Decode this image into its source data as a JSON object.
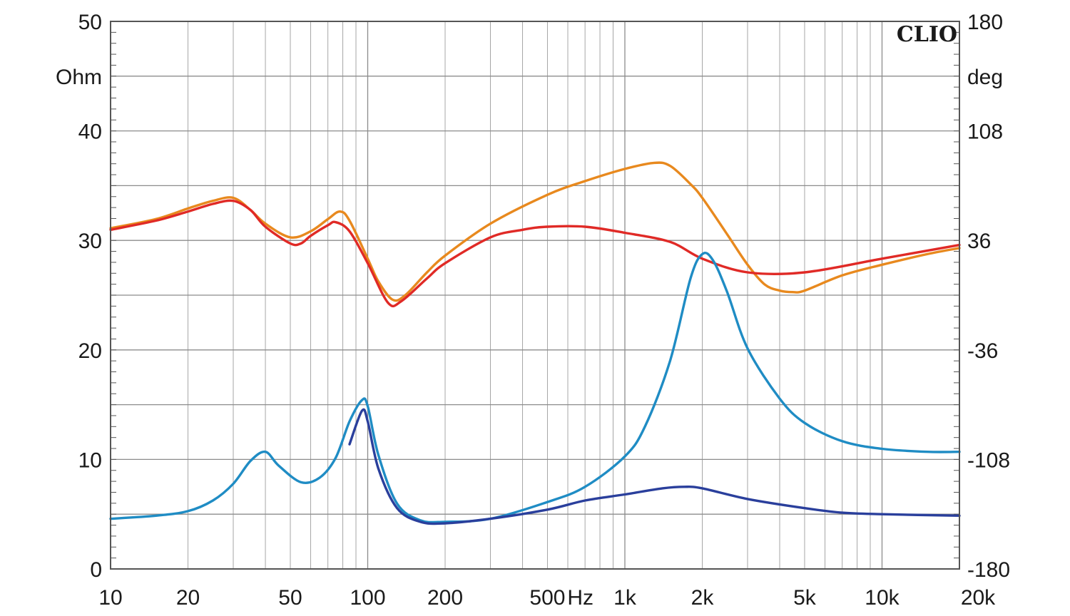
{
  "chart_data": {
    "type": "line",
    "brand": "CLIO",
    "x_scale": "log",
    "xlim": [
      10,
      20000
    ],
    "ylim": [
      0,
      50
    ],
    "y2lim": [
      -180,
      180
    ],
    "y_unit": "Ohm",
    "y2_unit": "deg",
    "x_unit": "Hz",
    "x_ticks": [
      {
        "value": 10,
        "label": "10"
      },
      {
        "value": 20,
        "label": "20"
      },
      {
        "value": 50,
        "label": "50"
      },
      {
        "value": 100,
        "label": "100"
      },
      {
        "value": 200,
        "label": "200"
      },
      {
        "value": 500,
        "label": "500"
      },
      {
        "value": 1000,
        "label": "1k"
      },
      {
        "value": 2000,
        "label": "2k"
      },
      {
        "value": 5000,
        "label": "5k"
      },
      {
        "value": 10000,
        "label": "10k"
      },
      {
        "value": 20000,
        "label": "20k"
      }
    ],
    "y_ticks": [
      {
        "value": 0,
        "label": "0"
      },
      {
        "value": 10,
        "label": "10"
      },
      {
        "value": 20,
        "label": "20"
      },
      {
        "value": 30,
        "label": "30"
      },
      {
        "value": 40,
        "label": "40"
      },
      {
        "value": 50,
        "label": "50"
      }
    ],
    "y2_ticks": [
      {
        "value": -180,
        "label": "-180"
      },
      {
        "value": -108,
        "label": "-108"
      },
      {
        "value": -36,
        "label": "-36"
      },
      {
        "value": 36,
        "label": "36"
      },
      {
        "value": 108,
        "label": "108"
      },
      {
        "value": 180,
        "label": "180"
      }
    ],
    "grid": true,
    "series": [
      {
        "color": "#e8891e",
        "axis": "right",
        "points": [
          [
            10,
            44
          ],
          [
            15,
            50
          ],
          [
            20,
            57
          ],
          [
            25,
            62
          ],
          [
            30,
            64
          ],
          [
            35,
            56
          ],
          [
            40,
            47
          ],
          [
            50,
            38
          ],
          [
            60,
            42
          ],
          [
            70,
            50
          ],
          [
            78,
            55
          ],
          [
            85,
            49
          ],
          [
            100,
            24
          ],
          [
            110,
            9
          ],
          [
            125,
            -3
          ],
          [
            140,
            0
          ],
          [
            170,
            15
          ],
          [
            200,
            26
          ],
          [
            300,
            47
          ],
          [
            500,
            66
          ],
          [
            700,
            75
          ],
          [
            1000,
            83
          ],
          [
            1300,
            87
          ],
          [
            1500,
            85
          ],
          [
            1800,
            73
          ],
          [
            2000,
            64
          ],
          [
            2500,
            40
          ],
          [
            3000,
            20
          ],
          [
            3500,
            7
          ],
          [
            4000,
            3
          ],
          [
            4500,
            2
          ],
          [
            5000,
            3
          ],
          [
            7000,
            13
          ],
          [
            10000,
            20
          ],
          [
            15000,
            27
          ],
          [
            20000,
            31
          ]
        ]
      },
      {
        "color": "#e02a26",
        "axis": "right",
        "points": [
          [
            10,
            43
          ],
          [
            15,
            49
          ],
          [
            20,
            55
          ],
          [
            25,
            60
          ],
          [
            30,
            62
          ],
          [
            35,
            56
          ],
          [
            40,
            45
          ],
          [
            50,
            34
          ],
          [
            55,
            34
          ],
          [
            60,
            39
          ],
          [
            70,
            46
          ],
          [
            75,
            48
          ],
          [
            85,
            42
          ],
          [
            100,
            21
          ],
          [
            120,
            -5
          ],
          [
            135,
            -4
          ],
          [
            170,
            11
          ],
          [
            200,
            21
          ],
          [
            300,
            38
          ],
          [
            400,
            43
          ],
          [
            500,
            45
          ],
          [
            700,
            45
          ],
          [
            1000,
            41
          ],
          [
            1500,
            35
          ],
          [
            2000,
            24
          ],
          [
            3000,
            15
          ],
          [
            5000,
            15
          ],
          [
            10000,
            24
          ],
          [
            20000,
            33
          ]
        ]
      },
      {
        "color": "#1f8cc4",
        "axis": "right",
        "points": [
          [
            10,
            -147
          ],
          [
            15,
            -145
          ],
          [
            20,
            -142
          ],
          [
            25,
            -135
          ],
          [
            30,
            -124
          ],
          [
            35,
            -109
          ],
          [
            40,
            -103
          ],
          [
            45,
            -112
          ],
          [
            55,
            -123
          ],
          [
            65,
            -120
          ],
          [
            75,
            -107
          ],
          [
            85,
            -83
          ],
          [
            95,
            -69
          ],
          [
            100,
            -73
          ],
          [
            110,
            -105
          ],
          [
            130,
            -137
          ],
          [
            160,
            -148
          ],
          [
            200,
            -149
          ],
          [
            300,
            -147
          ],
          [
            500,
            -136
          ],
          [
            700,
            -126
          ],
          [
            1000,
            -106
          ],
          [
            1200,
            -86
          ],
          [
            1500,
            -43
          ],
          [
            1800,
            11
          ],
          [
            2000,
            27
          ],
          [
            2200,
            23
          ],
          [
            2500,
            2
          ],
          [
            3000,
            -35
          ],
          [
            4000,
            -68
          ],
          [
            5000,
            -84
          ],
          [
            7000,
            -96
          ],
          [
            10000,
            -101
          ],
          [
            15000,
            -103
          ],
          [
            20000,
            -103
          ]
        ]
      },
      {
        "color": "#2a3f9c",
        "axis": "right",
        "points": [
          [
            85,
            -98
          ],
          [
            95,
            -76
          ],
          [
            100,
            -83
          ],
          [
            110,
            -114
          ],
          [
            130,
            -140
          ],
          [
            160,
            -149
          ],
          [
            200,
            -150
          ],
          [
            300,
            -147
          ],
          [
            500,
            -141
          ],
          [
            700,
            -135
          ],
          [
            1000,
            -131
          ],
          [
            1400,
            -127
          ],
          [
            1700,
            -126
          ],
          [
            2000,
            -127
          ],
          [
            3000,
            -134
          ],
          [
            5000,
            -140
          ],
          [
            7000,
            -143
          ],
          [
            10000,
            -144
          ],
          [
            20000,
            -145
          ]
        ]
      }
    ]
  }
}
